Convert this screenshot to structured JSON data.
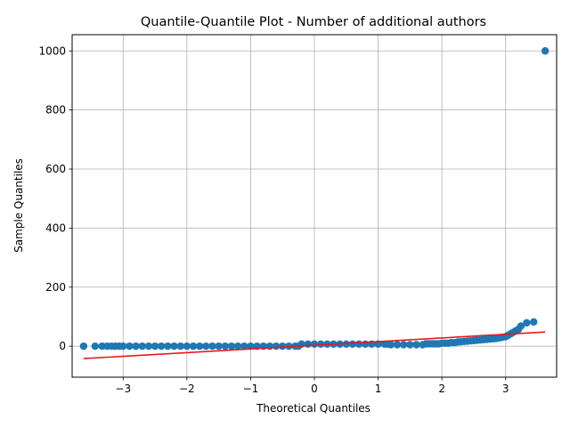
{
  "chart_data": {
    "type": "scatter",
    "title": "Quantile-Quantile Plot - Number of additional authors",
    "xlabel": "Theoretical Quantiles",
    "ylabel": "Sample Quantiles",
    "xlim": [
      -3.8,
      3.8
    ],
    "ylim": [
      -105,
      1055
    ],
    "xticks": [
      -3,
      -2,
      -1,
      0,
      1,
      2,
      3
    ],
    "yticks": [
      0,
      200,
      400,
      600,
      800,
      1000
    ],
    "grid": true,
    "marker_color": "#1f77b4",
    "line_color": "#e41a1c",
    "reference_line": {
      "x": [
        -3.62,
        3.62
      ],
      "y": [
        -42,
        48
      ]
    },
    "series": [
      {
        "points": [
          [
            -3.62,
            0
          ],
          [
            -3.44,
            0
          ],
          [
            -3.33,
            0
          ],
          [
            -3.25,
            0
          ],
          [
            -3.18,
            0
          ],
          [
            -3.12,
            0
          ],
          [
            -3.06,
            0
          ],
          [
            -3.0,
            0
          ],
          [
            -2.9,
            0
          ],
          [
            -2.8,
            0
          ],
          [
            -2.7,
            0
          ],
          [
            -2.6,
            0
          ],
          [
            -2.5,
            0
          ],
          [
            -2.4,
            0
          ],
          [
            -2.3,
            0
          ],
          [
            -2.2,
            0
          ],
          [
            -2.1,
            0
          ],
          [
            -2.0,
            0
          ],
          [
            -1.9,
            0
          ],
          [
            -1.8,
            0
          ],
          [
            -1.7,
            0
          ],
          [
            -1.6,
            0
          ],
          [
            -1.5,
            0
          ],
          [
            -1.4,
            0
          ],
          [
            -1.3,
            0
          ],
          [
            -1.2,
            0
          ],
          [
            -1.1,
            0
          ],
          [
            -1.0,
            0
          ],
          [
            -0.9,
            0
          ],
          [
            -0.8,
            0
          ],
          [
            -0.7,
            0
          ],
          [
            -0.6,
            0
          ],
          [
            -0.5,
            0
          ],
          [
            -0.4,
            0
          ],
          [
            -0.3,
            0
          ],
          [
            -0.25,
            0
          ],
          [
            -0.2,
            7
          ],
          [
            -0.1,
            7
          ],
          [
            0.0,
            7
          ],
          [
            0.1,
            7
          ],
          [
            0.2,
            7
          ],
          [
            0.3,
            7
          ],
          [
            0.4,
            7
          ],
          [
            0.5,
            7
          ],
          [
            0.6,
            7
          ],
          [
            0.7,
            7
          ],
          [
            0.8,
            7
          ],
          [
            0.9,
            7
          ],
          [
            1.0,
            7
          ],
          [
            1.1,
            7
          ],
          [
            1.15,
            7
          ],
          [
            1.2,
            5
          ],
          [
            1.3,
            5
          ],
          [
            1.4,
            5
          ],
          [
            1.5,
            5
          ],
          [
            1.6,
            5
          ],
          [
            1.7,
            5
          ],
          [
            1.75,
            8
          ],
          [
            1.8,
            8
          ],
          [
            1.85,
            8
          ],
          [
            1.9,
            8
          ],
          [
            1.95,
            8
          ],
          [
            2.0,
            10
          ],
          [
            2.05,
            10
          ],
          [
            2.1,
            10
          ],
          [
            2.15,
            12
          ],
          [
            2.2,
            12
          ],
          [
            2.25,
            14
          ],
          [
            2.3,
            15
          ],
          [
            2.35,
            16
          ],
          [
            2.4,
            17
          ],
          [
            2.45,
            18
          ],
          [
            2.5,
            19
          ],
          [
            2.55,
            20
          ],
          [
            2.6,
            21
          ],
          [
            2.65,
            22
          ],
          [
            2.7,
            23
          ],
          [
            2.75,
            24
          ],
          [
            2.8,
            25
          ],
          [
            2.85,
            26
          ],
          [
            2.9,
            28
          ],
          [
            2.95,
            30
          ],
          [
            3.0,
            32
          ],
          [
            3.04,
            37
          ],
          [
            3.08,
            42
          ],
          [
            3.12,
            47
          ],
          [
            3.16,
            52
          ],
          [
            3.2,
            57
          ],
          [
            3.24,
            68
          ],
          [
            3.33,
            79
          ],
          [
            3.44,
            82
          ],
          [
            3.62,
            1000
          ]
        ]
      }
    ]
  }
}
